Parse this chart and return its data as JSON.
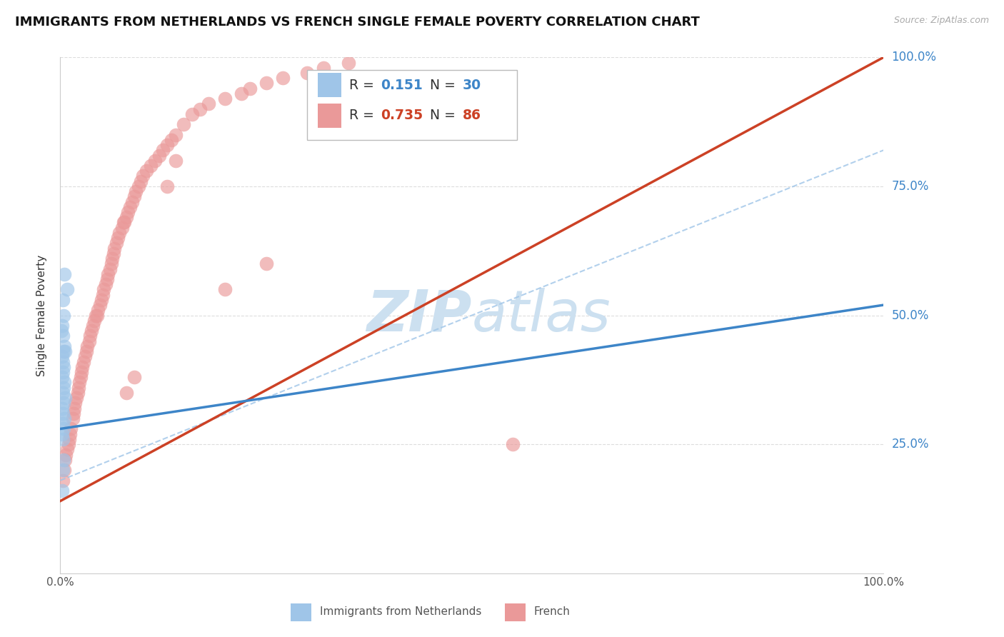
{
  "title": "IMMIGRANTS FROM NETHERLANDS VS FRENCH SINGLE FEMALE POVERTY CORRELATION CHART",
  "source": "Source: ZipAtlas.com",
  "ylabel": "Single Female Poverty",
  "R1": 0.151,
  "N1": 30,
  "R2": 0.735,
  "N2": 86,
  "blue_color": "#9fc5e8",
  "pink_color": "#ea9999",
  "blue_line_color": "#3d85c8",
  "pink_line_color": "#cc4125",
  "dash_line_color": "#9fc5e8",
  "blue_text_color": "#3d85c8",
  "pink_text_color": "#cc4125",
  "right_label_color": "#3d85c8",
  "watermark_color": "#cce0f0",
  "background_color": "#ffffff",
  "grid_color": "#dddddd",
  "legend_label1": "Immigrants from Netherlands",
  "legend_label2": "French",
  "xlim": [
    0.0,
    1.0
  ],
  "ylim": [
    0.0,
    1.0
  ],
  "ytick_vals": [
    0.25,
    0.5,
    0.75,
    1.0
  ],
  "ytick_labels": [
    "25.0%",
    "50.0%",
    "75.0%",
    "100.0%"
  ],
  "xtick_vals": [
    0.0,
    1.0
  ],
  "xtick_labels": [
    "0.0%",
    "100.0%"
  ],
  "blue_line_x0": 0.0,
  "blue_line_x1": 1.0,
  "blue_line_y0": 0.28,
  "blue_line_y1": 0.52,
  "pink_line_x0": 0.0,
  "pink_line_x1": 1.0,
  "pink_line_y0": 0.14,
  "pink_line_y1": 1.0,
  "dash_line_x0": 0.0,
  "dash_line_x1": 1.0,
  "dash_line_y0": 0.18,
  "dash_line_y1": 0.82,
  "blue_x": [
    0.005,
    0.008,
    0.003,
    0.004,
    0.002,
    0.001,
    0.003,
    0.005,
    0.004,
    0.006,
    0.002,
    0.003,
    0.004,
    0.003,
    0.002,
    0.005,
    0.004,
    0.003,
    0.006,
    0.004,
    0.002,
    0.003,
    0.005,
    0.003,
    0.004,
    0.002,
    0.003,
    0.004,
    0.003,
    0.002
  ],
  "blue_y": [
    0.58,
    0.55,
    0.53,
    0.5,
    0.48,
    0.47,
    0.46,
    0.44,
    0.43,
    0.43,
    0.42,
    0.41,
    0.4,
    0.39,
    0.38,
    0.37,
    0.36,
    0.35,
    0.34,
    0.33,
    0.32,
    0.31,
    0.3,
    0.29,
    0.28,
    0.27,
    0.26,
    0.22,
    0.2,
    0.16
  ],
  "pink_x": [
    0.003,
    0.005,
    0.006,
    0.007,
    0.008,
    0.01,
    0.011,
    0.012,
    0.013,
    0.015,
    0.016,
    0.017,
    0.018,
    0.02,
    0.021,
    0.022,
    0.023,
    0.025,
    0.026,
    0.027,
    0.028,
    0.03,
    0.032,
    0.033,
    0.035,
    0.036,
    0.038,
    0.04,
    0.041,
    0.043,
    0.045,
    0.046,
    0.048,
    0.05,
    0.052,
    0.053,
    0.055,
    0.057,
    0.058,
    0.06,
    0.062,
    0.063,
    0.065,
    0.066,
    0.068,
    0.07,
    0.072,
    0.075,
    0.077,
    0.078,
    0.08,
    0.082,
    0.085,
    0.087,
    0.09,
    0.092,
    0.095,
    0.098,
    0.1,
    0.105,
    0.11,
    0.115,
    0.12,
    0.125,
    0.13,
    0.135,
    0.14,
    0.15,
    0.16,
    0.17,
    0.18,
    0.2,
    0.22,
    0.23,
    0.25,
    0.27,
    0.3,
    0.32,
    0.35,
    0.55,
    0.2,
    0.25,
    0.13,
    0.14,
    0.08,
    0.09
  ],
  "pink_y": [
    0.18,
    0.2,
    0.22,
    0.23,
    0.24,
    0.25,
    0.26,
    0.27,
    0.28,
    0.3,
    0.31,
    0.32,
    0.33,
    0.34,
    0.35,
    0.36,
    0.37,
    0.38,
    0.39,
    0.4,
    0.41,
    0.42,
    0.43,
    0.44,
    0.45,
    0.46,
    0.47,
    0.48,
    0.49,
    0.5,
    0.5,
    0.51,
    0.52,
    0.53,
    0.54,
    0.55,
    0.56,
    0.57,
    0.58,
    0.59,
    0.6,
    0.61,
    0.62,
    0.63,
    0.64,
    0.65,
    0.66,
    0.67,
    0.68,
    0.68,
    0.69,
    0.7,
    0.71,
    0.72,
    0.73,
    0.74,
    0.75,
    0.76,
    0.77,
    0.78,
    0.79,
    0.8,
    0.81,
    0.82,
    0.83,
    0.84,
    0.85,
    0.87,
    0.89,
    0.9,
    0.91,
    0.92,
    0.93,
    0.94,
    0.95,
    0.96,
    0.97,
    0.98,
    0.99,
    0.25,
    0.55,
    0.6,
    0.75,
    0.8,
    0.35,
    0.38
  ]
}
